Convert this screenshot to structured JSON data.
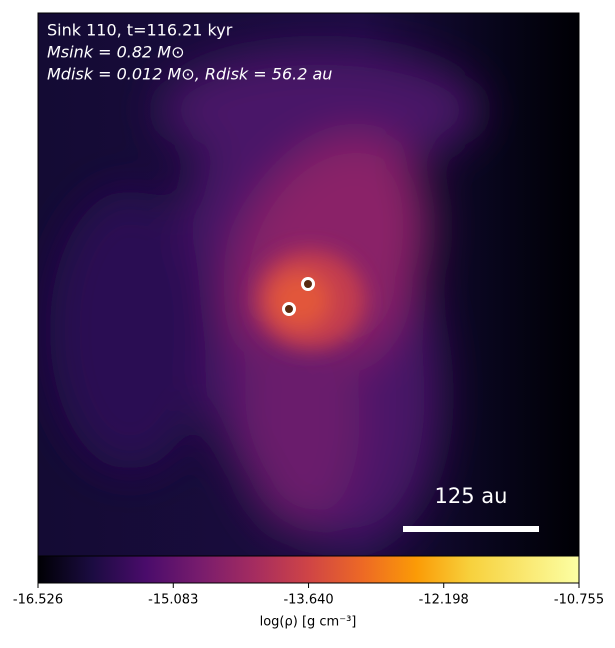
{
  "chart_data": {
    "type": "image",
    "title_lines": [
      "Sink 110, t=116.21 kyr",
      "Msink = 0.82 M⊙",
      "Mdisk = 0.012 M⊙, Rdisk = 56.2 au"
    ],
    "scale_bar_label": "125 au",
    "colorbar": {
      "label": "log(ρ) [g cm⁻³]",
      "clim": [
        -16.526,
        -10.755
      ],
      "ticks": [
        -16.526,
        -15.083,
        {
          "value": -13.64,
          "label": "-13.640"
        },
        -12.198,
        -10.755
      ],
      "colormap": "inferno"
    }
  }
}
